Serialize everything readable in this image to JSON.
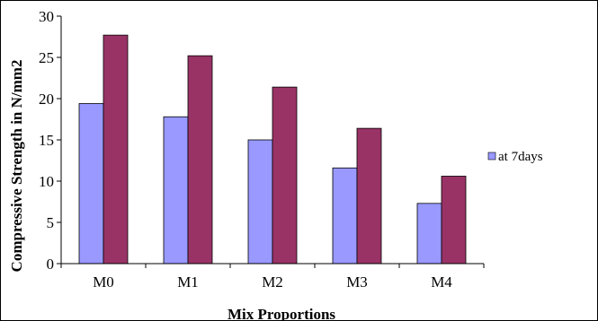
{
  "chart_data": {
    "type": "bar",
    "title": "",
    "xlabel": "Mix Proportions",
    "ylabel": "Compressive Strength in N/mm2",
    "categories": [
      "M0",
      "M1",
      "M2",
      "M3",
      "M4"
    ],
    "series": [
      {
        "name": "at 7days",
        "color": "#9999ff",
        "values": [
          19.4,
          17.8,
          15.0,
          11.6,
          7.3
        ]
      },
      {
        "color": "#993366",
        "values": [
          27.7,
          25.2,
          21.4,
          16.4,
          10.6
        ]
      }
    ],
    "ylim": [
      0,
      30
    ],
    "yticks": [
      "0",
      "5",
      "10",
      "15",
      "20",
      "25",
      "30"
    ],
    "grid": false,
    "legend": "right"
  }
}
